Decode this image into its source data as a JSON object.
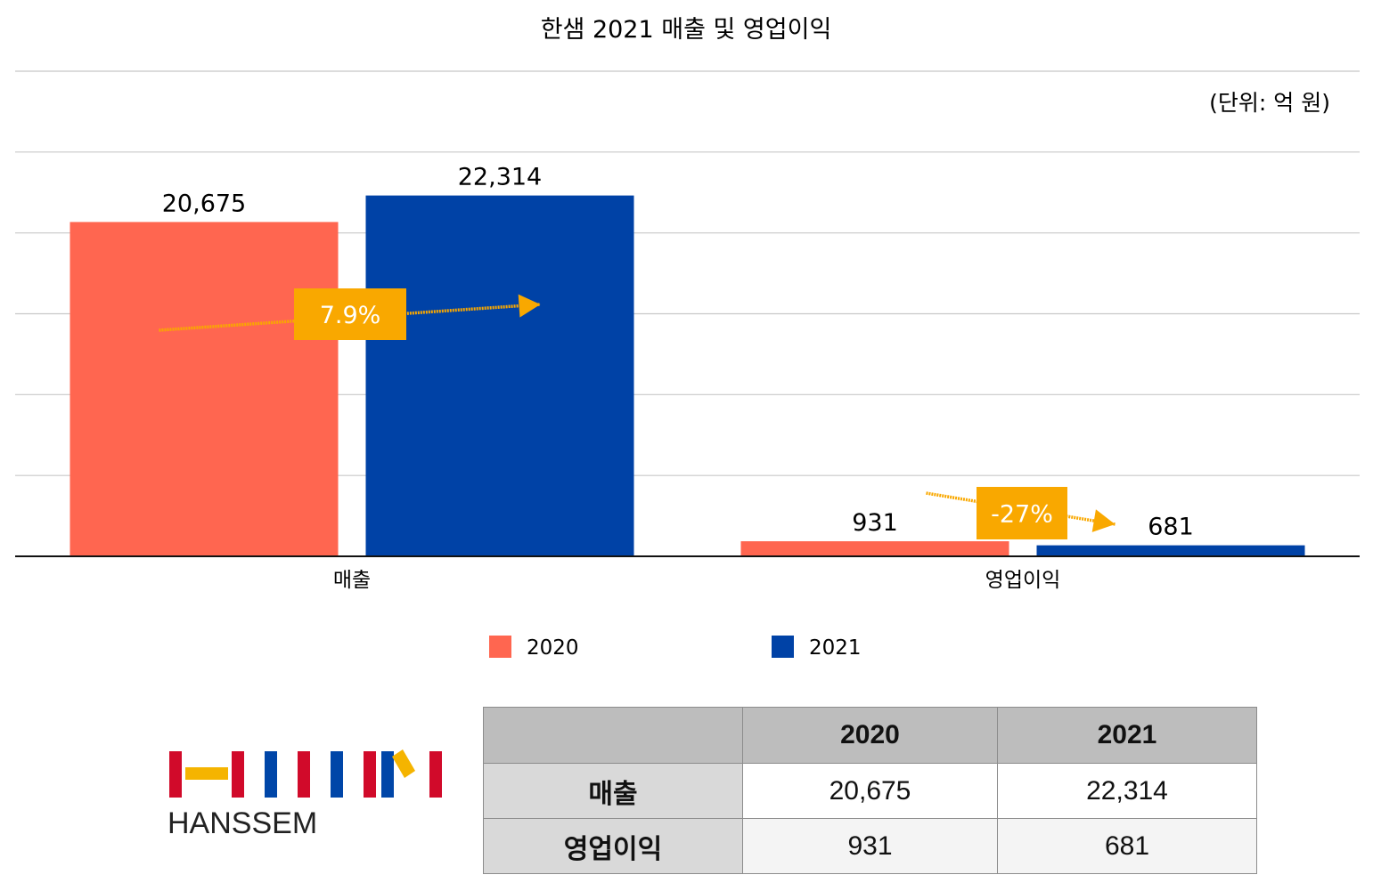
{
  "chart_data": {
    "type": "bar",
    "title": "한샘 2021 매출 및 영업이익",
    "unit_note": "(단위: 억 원)",
    "categories": [
      "매출",
      "영업이익"
    ],
    "series": [
      {
        "name": "2020",
        "values": [
          20675,
          931
        ],
        "labels": [
          "20,675",
          "931"
        ],
        "color": "#ff6650"
      },
      {
        "name": "2021",
        "values": [
          22314,
          681
        ],
        "labels": [
          "22,314",
          "681"
        ],
        "color": "#0042a6"
      }
    ],
    "ylim": [
      0,
      30000
    ],
    "grid": true,
    "legend_position": "bottom",
    "annotations": [
      {
        "text": "7.9%",
        "category": "매출",
        "direction": "up"
      },
      {
        "text": "-27%",
        "category": "영업이익",
        "direction": "down"
      }
    ],
    "annotation_color": "#f9a800"
  },
  "logo": {
    "name": "HANSSEM",
    "colors": {
      "red": "#d10a2a",
      "yellow": "#f5b400",
      "blue": "#0046a8"
    }
  },
  "table": {
    "headers": [
      "",
      "2020",
      "2021"
    ],
    "rows": [
      {
        "label": "매출",
        "cells": [
          "20,675",
          "22,314"
        ]
      },
      {
        "label": "영업이익",
        "cells": [
          "931",
          "681"
        ]
      }
    ]
  }
}
